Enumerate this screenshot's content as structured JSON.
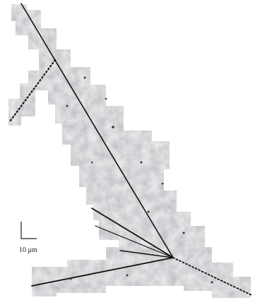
{
  "scale_bar": {
    "label": "10 μm"
  }
}
